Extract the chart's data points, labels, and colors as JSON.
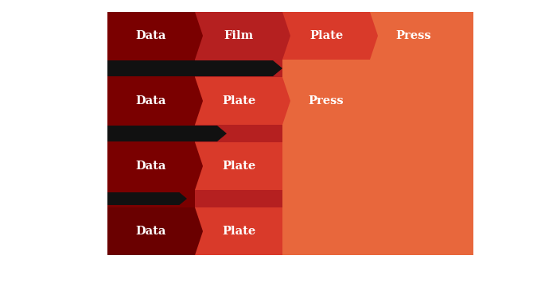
{
  "background": "#ffffff",
  "row_configs": [
    {
      "steps": [
        "Data",
        "Film",
        "Plate",
        "Press"
      ],
      "ncols": 4,
      "colors": [
        "#7a0000",
        "#b52020",
        "#d93a2a",
        "#e8673c"
      ]
    },
    {
      "steps": [
        "Data",
        "Plate",
        "Press"
      ],
      "ncols": 3,
      "colors": [
        "#7a0000",
        "#d93a2a",
        "#e8673c"
      ]
    },
    {
      "steps": [
        "Data",
        "Plate"
      ],
      "ncols": 2,
      "colors": [
        "#7a0000",
        "#d93a2a"
      ]
    },
    {
      "steps": [
        "Data",
        "Plate"
      ],
      "ncols": 2,
      "colors": [
        "#6a0000",
        "#d93a2a"
      ]
    }
  ],
  "col_bg_colors": [
    "#7a0000",
    "#b52020",
    "#d93a2a",
    "#e8673c"
  ],
  "orange": "#e8673c",
  "dark_red": "#7a0000",
  "text_color": "#ffffff",
  "arrow_color": "#111111",
  "font_size": 10.5
}
